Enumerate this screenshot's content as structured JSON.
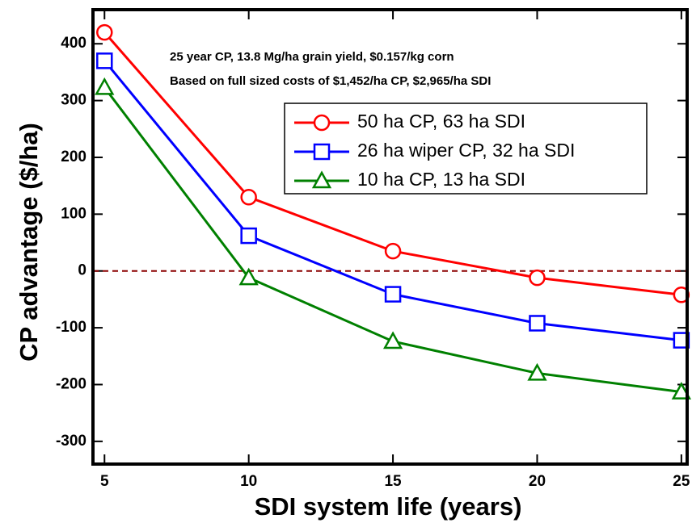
{
  "chart_data": {
    "type": "line",
    "xlabel": "SDI system life (years)",
    "ylabel": "CP advantage ($/ha)",
    "annotations": [
      "25 year CP, 13.8 Mg/ha grain yield, $0.157/kg corn",
      "Based on full sized costs of $1,452/ha CP, $2,965/ha SDI"
    ],
    "x": [
      5,
      10,
      15,
      20,
      25
    ],
    "series": [
      {
        "name": "50 ha CP, 63 ha SDI",
        "color": "#ff0000",
        "marker": "circle",
        "values": [
          420,
          130,
          35,
          -12,
          -42
        ]
      },
      {
        "name": "26 ha wiper CP, 32 ha SDI",
        "color": "#0000ff",
        "marker": "square",
        "values": [
          370,
          62,
          -41,
          -92,
          -122
        ]
      },
      {
        "name": "10 ha CP, 13 ha SDI",
        "color": "#008000",
        "marker": "triangle",
        "values": [
          323,
          -12,
          -124,
          -180,
          -213
        ]
      }
    ],
    "reference_line": {
      "value": 0,
      "color": "#8b0000"
    },
    "xlim": [
      4.6,
      25.2
    ],
    "xticks": [
      5,
      10,
      15,
      20,
      25
    ],
    "ylim": [
      -340,
      460
    ],
    "yticks": [
      -300,
      -200,
      -100,
      0,
      100,
      200,
      300,
      400
    ]
  }
}
